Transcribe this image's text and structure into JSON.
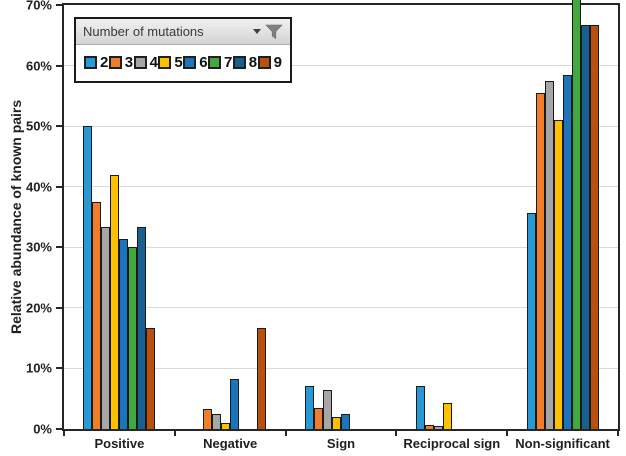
{
  "chart_data": {
    "type": "bar",
    "title": "",
    "ylabel": "Relative abundance of known pairs",
    "xlabel": "",
    "categories": [
      "Positive",
      "Negative",
      "Sign",
      "Reciprocal sign",
      "Non-significant"
    ],
    "legend_title": "Number of mutations",
    "series": [
      {
        "name": "2",
        "color": "#2699D6",
        "values": [
          50,
          0,
          7.1,
          7.1,
          35.7
        ]
      },
      {
        "name": "3",
        "color": "#F07D29",
        "values": [
          37.5,
          3.3,
          3.5,
          0.7,
          55.5
        ]
      },
      {
        "name": "4",
        "color": "#A6A6A6",
        "values": [
          33.3,
          2.5,
          6.4,
          0.5,
          57.5
        ]
      },
      {
        "name": "5",
        "color": "#FFC000",
        "values": [
          42,
          1,
          2,
          4.3,
          51
        ]
      },
      {
        "name": "6",
        "color": "#1C75BC",
        "values": [
          31.3,
          8.3,
          2.5,
          0,
          58.5
        ]
      },
      {
        "name": "7",
        "color": "#42A73F",
        "values": [
          30,
          0,
          0,
          0,
          71.4
        ]
      },
      {
        "name": "8",
        "color": "#17608F",
        "values": [
          33.3,
          0,
          0,
          0,
          66.7
        ]
      },
      {
        "name": "9",
        "color": "#B9500E",
        "values": [
          16.7,
          16.7,
          0,
          0,
          66.7
        ]
      }
    ],
    "ylim": [
      0,
      70
    ],
    "ytick_labels": [
      "0%",
      "10%",
      "20%",
      "30%",
      "40%",
      "50%",
      "60%",
      "70%"
    ],
    "grid": true,
    "legend_position": "top-left"
  }
}
